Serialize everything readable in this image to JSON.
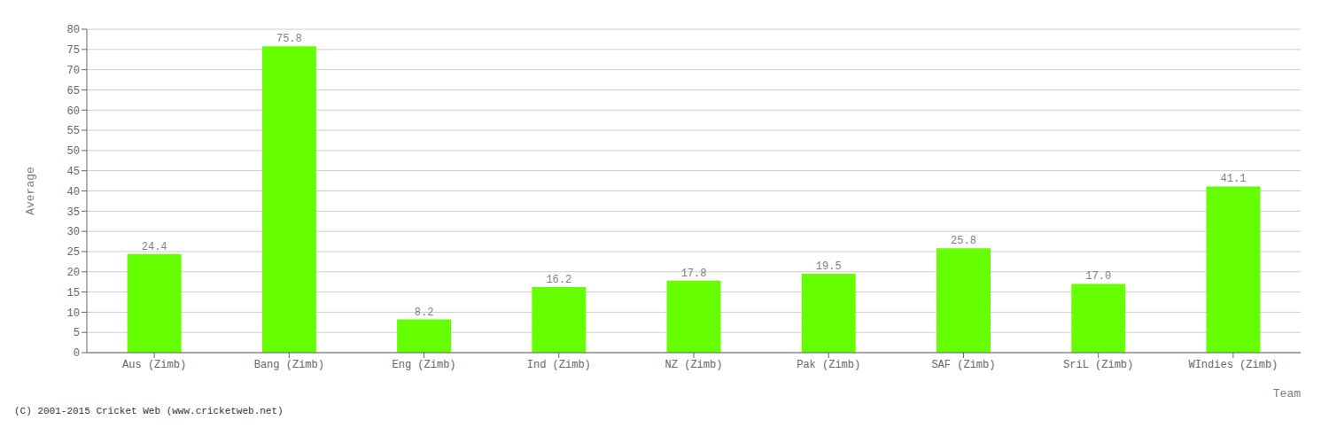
{
  "chart_data": {
    "type": "bar",
    "categories": [
      "Aus (Zimb)",
      "Bang (Zimb)",
      "Eng (Zimb)",
      "Ind (Zimb)",
      "NZ (Zimb)",
      "Pak (Zimb)",
      "SAF (Zimb)",
      "SriL (Zimb)",
      "WIndies (Zimb)"
    ],
    "values": [
      24.4,
      75.8,
      8.2,
      16.2,
      17.8,
      19.5,
      25.8,
      17.0,
      41.1
    ],
    "value_labels": [
      "24.4",
      "75.8",
      "8.2",
      "16.2",
      "17.8",
      "19.5",
      "25.8",
      "17.0",
      "41.1"
    ],
    "data_labels": true,
    "color": "#66ff00",
    "xlabel": "Team",
    "ylabel": "Average",
    "ylim": [
      0,
      80
    ],
    "yticks": [
      0,
      5,
      10,
      15,
      20,
      25,
      30,
      35,
      40,
      45,
      50,
      55,
      60,
      65,
      70,
      75,
      80
    ],
    "grid": true,
    "annotation": "(C) 2001-2015 Cricket Web (www.cricketweb.net)"
  }
}
